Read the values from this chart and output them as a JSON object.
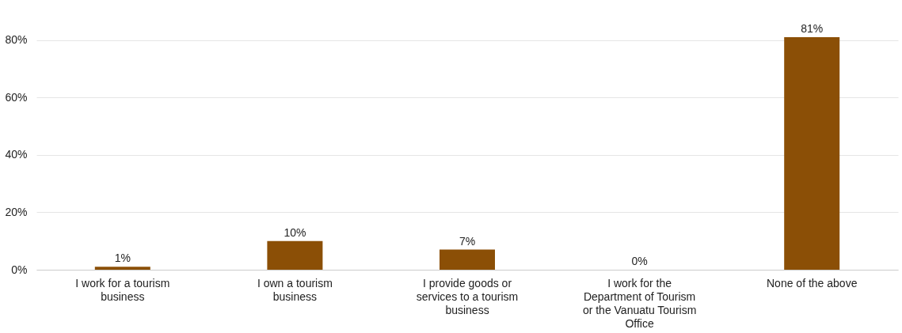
{
  "chart_data": {
    "type": "bar",
    "categories": [
      "I work for a tourism business",
      "I own a tourism business",
      "I provide goods or services to a tourism business",
      "I work for the Department of Tourism or the Vanuatu Tourism Office",
      "None of the above"
    ],
    "values": [
      1,
      10,
      7,
      0,
      81
    ],
    "color": "#8b4f06",
    "value_labels": [
      "1%",
      "10%",
      "7%",
      "0%",
      "81%"
    ],
    "yticks": [
      {
        "value": 0,
        "label": "0%"
      },
      {
        "value": 20,
        "label": "20%"
      },
      {
        "value": 40,
        "label": "40%"
      },
      {
        "value": 60,
        "label": "60%"
      },
      {
        "value": 80,
        "label": "80%"
      }
    ],
    "ylim": [
      0,
      81
    ],
    "grid": "y"
  }
}
